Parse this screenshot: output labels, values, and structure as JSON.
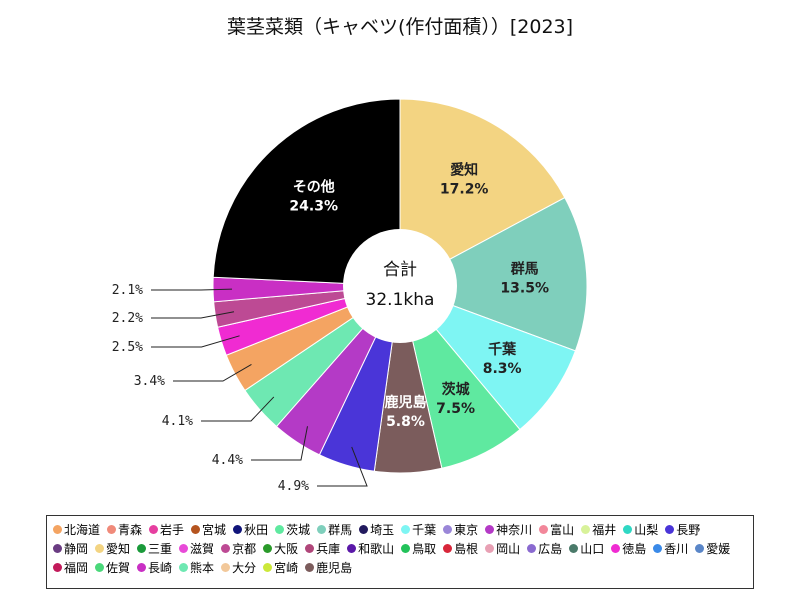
{
  "chart_data": {
    "type": "pie",
    "title": "葉茎菜類（キャベツ(作付面積））[2023]",
    "center_label": "合計",
    "center_value": "32.1kha",
    "slices": [
      {
        "name": "愛知",
        "value": 17.2,
        "color": "#f3d482",
        "label_name": "愛知",
        "label_value": "17.2%",
        "text_color": "#222222"
      },
      {
        "name": "群馬",
        "value": 13.5,
        "color": "#7fcfbc",
        "label_name": "群馬",
        "label_value": "13.5%",
        "text_color": "#222222"
      },
      {
        "name": "千葉",
        "value": 8.3,
        "color": "#7ef5f3",
        "label_name": "千葉",
        "label_value": "8.3%",
        "text_color": "#222222"
      },
      {
        "name": "茨城",
        "value": 7.5,
        "color": "#5fe9a0",
        "label_name": "茨城",
        "label_value": "7.5%",
        "text_color": "#222222"
      },
      {
        "name": "鹿児島",
        "value": 5.8,
        "color": "#7b5c5c",
        "label_name": "鹿児島",
        "label_value": "5.8%",
        "text_color": "#ffffff"
      },
      {
        "name": "長野",
        "value": 4.9,
        "color": "#4a35d8",
        "ext_label": "4.9%"
      },
      {
        "name": "神奈川",
        "value": 4.4,
        "color": "#b43ac6",
        "ext_label": "4.4%"
      },
      {
        "name": "熊本",
        "value": 4.1,
        "color": "#6ee8b2",
        "ext_label": "4.1%"
      },
      {
        "name": "北海道",
        "value": 3.4,
        "color": "#f4a462",
        "ext_label": "3.4%"
      },
      {
        "name": "徳島",
        "value": 2.5,
        "color": "#f02bd2",
        "ext_label": "2.5%"
      },
      {
        "name": "京都",
        "value": 2.2,
        "color": "#bd4a94",
        "ext_label": "2.2%"
      },
      {
        "name": "長崎",
        "value": 2.1,
        "color": "#c92fc4",
        "ext_label": "2.1%"
      },
      {
        "name": "その他",
        "value": 24.3,
        "color": "#000000",
        "label_name": "その他",
        "label_value": "24.3%",
        "text_color": "#ffffff"
      }
    ],
    "legend": [
      {
        "name": "北海道",
        "color": "#f4a462"
      },
      {
        "name": "青森",
        "color": "#f08a7a"
      },
      {
        "name": "岩手",
        "color": "#e63fa0"
      },
      {
        "name": "宮城",
        "color": "#b5541f"
      },
      {
        "name": "秋田",
        "color": "#10147a"
      },
      {
        "name": "茨城",
        "color": "#5fe9a0"
      },
      {
        "name": "群馬",
        "color": "#7fcfbc"
      },
      {
        "name": "埼玉",
        "color": "#221a5e"
      },
      {
        "name": "千葉",
        "color": "#7ef5f3"
      },
      {
        "name": "東京",
        "color": "#9a86d8"
      },
      {
        "name": "神奈川",
        "color": "#b43ac6"
      },
      {
        "name": "富山",
        "color": "#f2879a"
      },
      {
        "name": "福井",
        "color": "#d8f29a"
      },
      {
        "name": "山梨",
        "color": "#2fd8c4"
      },
      {
        "name": "長野",
        "color": "#4a35d8"
      },
      {
        "name": "静岡",
        "color": "#6a3c82"
      },
      {
        "name": "愛知",
        "color": "#f3d482"
      },
      {
        "name": "三重",
        "color": "#1a9a3a"
      },
      {
        "name": "滋賀",
        "color": "#e84ad8"
      },
      {
        "name": "京都",
        "color": "#bd4a94"
      },
      {
        "name": "大阪",
        "color": "#2a9a2a"
      },
      {
        "name": "兵庫",
        "color": "#b0467a"
      },
      {
        "name": "和歌山",
        "color": "#5a18a8"
      },
      {
        "name": "鳥取",
        "color": "#22c25a"
      },
      {
        "name": "島根",
        "color": "#d8263a"
      },
      {
        "name": "岡山",
        "color": "#e8a0b4"
      },
      {
        "name": "広島",
        "color": "#8a6ad0"
      },
      {
        "name": "山口",
        "color": "#4a7a6a"
      },
      {
        "name": "徳島",
        "color": "#f02bd2"
      },
      {
        "name": "香川",
        "color": "#3a8ae8"
      },
      {
        "name": "愛媛",
        "color": "#5a86c8"
      },
      {
        "name": "福岡",
        "color": "#c21a5a"
      },
      {
        "name": "佐賀",
        "color": "#4ad87a"
      },
      {
        "name": "長崎",
        "color": "#c92fc4"
      },
      {
        "name": "熊本",
        "color": "#6ee8b2"
      },
      {
        "name": "大分",
        "color": "#f2c89a"
      },
      {
        "name": "宮崎",
        "color": "#cce83a"
      },
      {
        "name": "鹿児島",
        "color": "#7b5c5c"
      }
    ]
  }
}
